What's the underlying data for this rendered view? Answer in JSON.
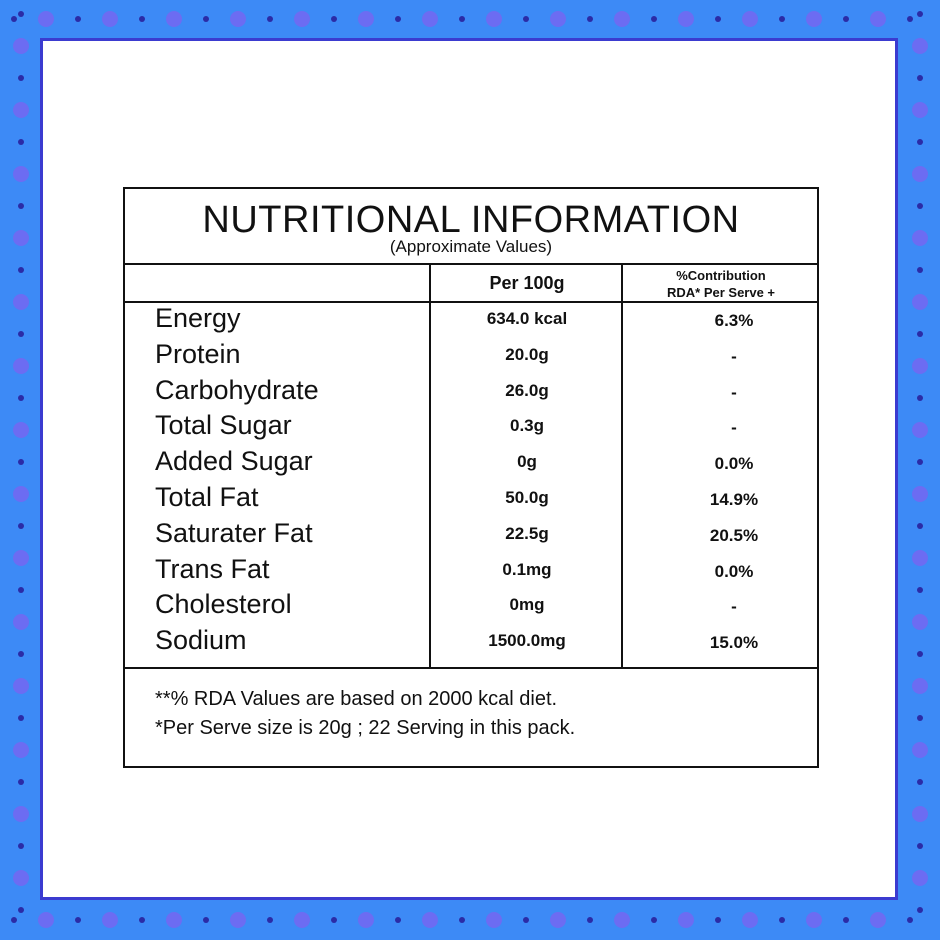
{
  "header": {
    "title": "NUTRITIONAL INFORMATION",
    "subtitle": "(Approximate Values)"
  },
  "table": {
    "columns": [
      "Per 100g",
      [
        "%Contribution",
        "RDA* Per Serve +"
      ]
    ],
    "rows": [
      [
        "Energy",
        "634.0 kcal",
        "6.3%"
      ],
      [
        "Protein",
        "20.0g",
        "-"
      ],
      [
        "Carbohydrate",
        "26.0g",
        "-"
      ],
      [
        "Total Sugar",
        "0.3g",
        "-"
      ],
      [
        "Added Sugar",
        "0g",
        "0.0%"
      ],
      [
        "Total Fat",
        "50.0g",
        "14.9%"
      ],
      [
        "Saturater Fat",
        "22.5g",
        "20.5%"
      ],
      [
        "Trans Fat",
        "0.1mg",
        "0.0%"
      ],
      [
        "Cholesterol",
        "0mg",
        "-"
      ],
      [
        "Sodium",
        "1500.0mg",
        "15.0%"
      ]
    ]
  },
  "footnotes": [
    "**% RDA Values are based on 2000 kcal diet.",
    "*Per Serve size is 20g ; 22 Serving in this pack."
  ]
}
